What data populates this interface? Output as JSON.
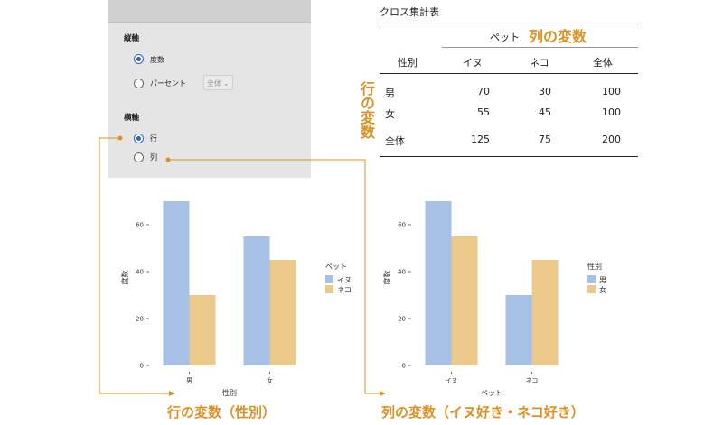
{
  "panel": {
    "vertical_axis_label": "縦軸",
    "opt_degree": "度数",
    "opt_percent": "パーセント",
    "percent_select": "全体",
    "horizontal_axis_label": "横軸",
    "opt_row": "行",
    "opt_col": "列",
    "selected_vertical": "度数",
    "selected_horizontal": "行"
  },
  "table": {
    "title": "クロス集計表",
    "col_var": "ペット",
    "row_var": "性別",
    "columns": [
      "イヌ",
      "ネコ",
      "全体"
    ],
    "rows": [
      {
        "label": "男",
        "values": [
          "70",
          "30",
          "100"
        ]
      },
      {
        "label": "女",
        "values": [
          "55",
          "45",
          "100"
        ]
      }
    ],
    "total": {
      "label": "全体",
      "values": [
        "125",
        "75",
        "200"
      ]
    }
  },
  "annotations": {
    "col_var": "列の変数",
    "row_var": "行の変数",
    "left_caption": "行の変数（性別）",
    "right_caption": "列の変数（イヌ好き・ネコ好き）"
  },
  "colors": {
    "blue": "#a6c1e5",
    "tan": "#ebc98a",
    "accent": "#dc9223"
  },
  "chart_data": [
    {
      "type": "bar",
      "categories": [
        "男",
        "女"
      ],
      "series": [
        {
          "name": "イヌ",
          "values": [
            70,
            55
          ]
        },
        {
          "name": "ネコ",
          "values": [
            30,
            45
          ]
        }
      ],
      "xlabel": "性別",
      "ylabel": "度数",
      "legend_title": "ペット",
      "yticks": [
        0,
        20,
        40,
        60
      ],
      "ylim": [
        0,
        75
      ],
      "legend": "right"
    },
    {
      "type": "bar",
      "categories": [
        "イヌ",
        "ネコ"
      ],
      "series": [
        {
          "name": "男",
          "values": [
            70,
            30
          ]
        },
        {
          "name": "女",
          "values": [
            55,
            45
          ]
        }
      ],
      "xlabel": "ペット",
      "ylabel": "度数",
      "legend_title": "性別",
      "yticks": [
        0,
        20,
        40,
        60
      ],
      "ylim": [
        0,
        75
      ],
      "legend": "right"
    }
  ]
}
